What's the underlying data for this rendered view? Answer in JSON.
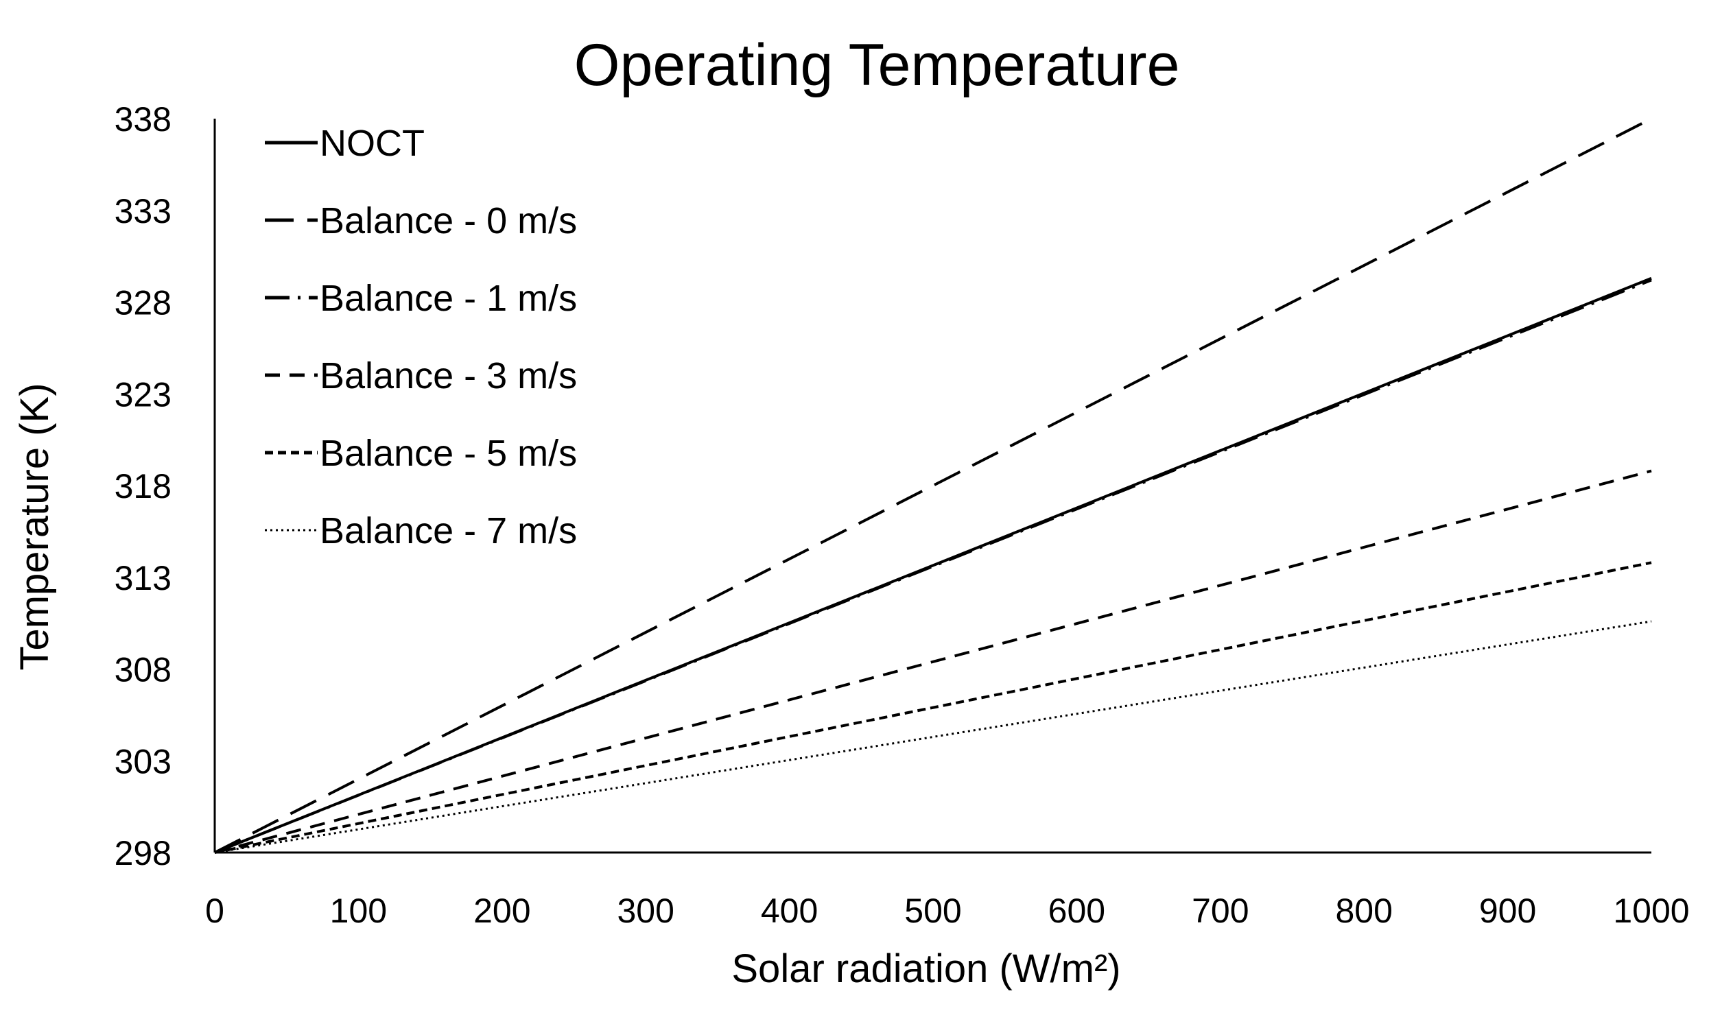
{
  "chart_data": {
    "type": "line",
    "title": "Operating Temperature",
    "xlabel": "Solar radiation (W/m²)",
    "ylabel": "Temperature (K)",
    "xlim": [
      0,
      1000
    ],
    "ylim": [
      298,
      338
    ],
    "x_ticks": [
      "0",
      "100",
      "200",
      "300",
      "400",
      "500",
      "600",
      "700",
      "800",
      "900",
      "1000"
    ],
    "y_ticks": [
      "298",
      "303",
      "308",
      "313",
      "318",
      "323",
      "328",
      "333",
      "338"
    ],
    "grid": false,
    "legend_position": "top-left",
    "x": [
      0,
      1000
    ],
    "series": [
      {
        "name": "NOCT",
        "style": "solid",
        "values": [
          298.0,
          329.3
        ]
      },
      {
        "name": "Balance - 0 m/s",
        "style": "long-dash",
        "values": [
          298.0,
          338.0
        ]
      },
      {
        "name": "Balance - 1 m/s",
        "style": "dash-dot",
        "values": [
          298.0,
          329.2
        ]
      },
      {
        "name": "Balance - 3 m/s",
        "style": "medium-dash",
        "values": [
          298.0,
          318.8
        ]
      },
      {
        "name": "Balance - 5 m/s",
        "style": "short-dash",
        "values": [
          298.0,
          313.8
        ]
      },
      {
        "name": "Balance - 7 m/s",
        "style": "dotted",
        "values": [
          298.0,
          310.6
        ]
      }
    ],
    "colors": {
      "line": "#000000",
      "axis": "#000000",
      "background": "#ffffff"
    }
  }
}
